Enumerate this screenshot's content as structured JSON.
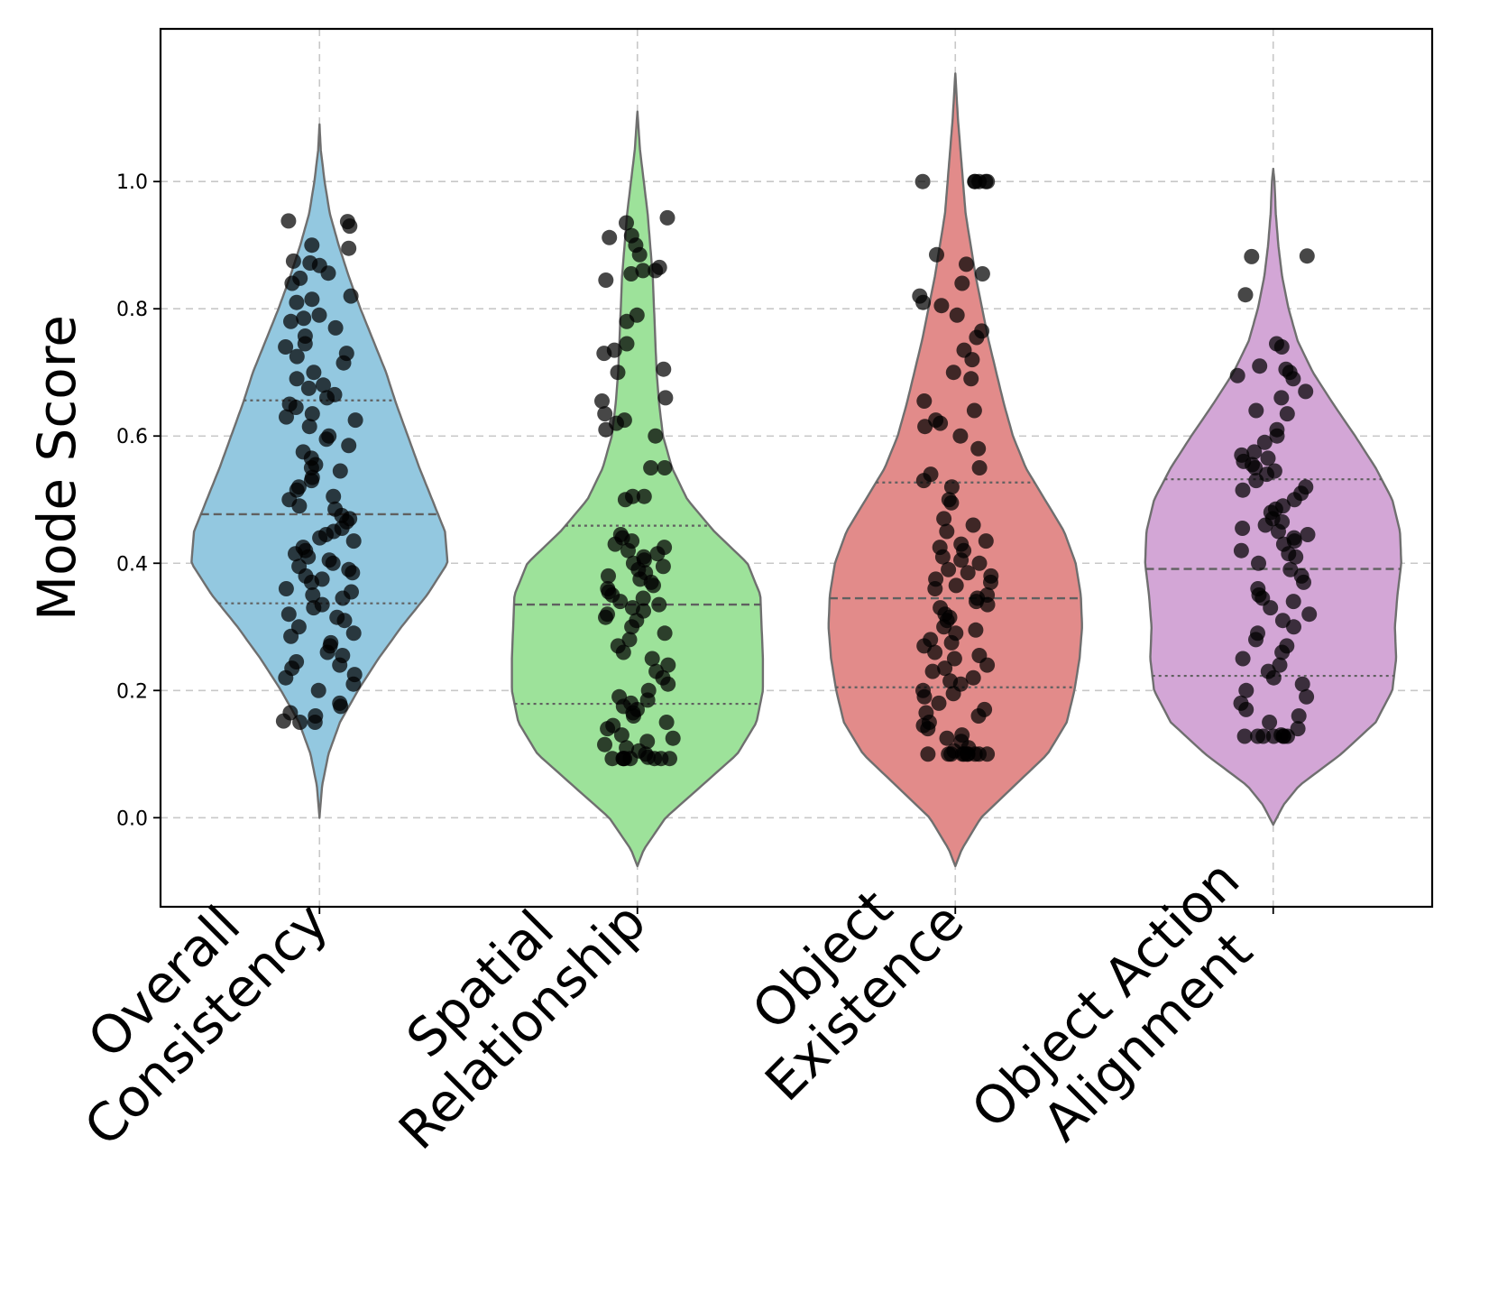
{
  "chart_data": {
    "type": "violin",
    "title": "",
    "xlabel": "",
    "ylabel": "Mode Score",
    "ylim": [
      -0.14,
      1.24
    ],
    "yticks": [
      0.0,
      0.2,
      0.4,
      0.6,
      0.8,
      1.0
    ],
    "ytick_labels": [
      "0.0",
      "0.2",
      "0.4",
      "0.6",
      "0.8",
      "1.0"
    ],
    "grid": true,
    "point_color": "#000000",
    "series": [
      {
        "name": "Overall Consistency",
        "label_lines": [
          "Overall",
          "Consistency"
        ],
        "color": "#93C8E0",
        "quartiles": {
          "q1": 0.337,
          "median": 0.477,
          "q3": 0.656
        },
        "profile": [
          [
            0.0,
            0
          ],
          [
            0.05,
            0.02
          ],
          [
            0.1,
            0.07
          ],
          [
            0.15,
            0.16
          ],
          [
            0.2,
            0.3
          ],
          [
            0.25,
            0.46
          ],
          [
            0.3,
            0.64
          ],
          [
            0.35,
            0.84
          ],
          [
            0.4,
            1.0
          ],
          [
            0.45,
            0.98
          ],
          [
            0.5,
            0.88
          ],
          [
            0.55,
            0.78
          ],
          [
            0.6,
            0.69
          ],
          [
            0.65,
            0.6
          ],
          [
            0.7,
            0.52
          ],
          [
            0.75,
            0.42
          ],
          [
            0.8,
            0.32
          ],
          [
            0.85,
            0.23
          ],
          [
            0.9,
            0.15
          ],
          [
            0.95,
            0.08
          ],
          [
            1.0,
            0.04
          ],
          [
            1.05,
            0.01
          ],
          [
            1.09,
            0
          ]
        ],
        "points": [
          0.937,
          0.93,
          0.938,
          0.9,
          0.895,
          0.875,
          0.872,
          0.868,
          0.856,
          0.848,
          0.84,
          0.82,
          0.815,
          0.81,
          0.79,
          0.785,
          0.78,
          0.77,
          0.757,
          0.745,
          0.74,
          0.73,
          0.725,
          0.715,
          0.7,
          0.69,
          0.68,
          0.675,
          0.665,
          0.66,
          0.65,
          0.645,
          0.635,
          0.63,
          0.625,
          0.615,
          0.6,
          0.595,
          0.585,
          0.575,
          0.565,
          0.555,
          0.55,
          0.545,
          0.535,
          0.53,
          0.52,
          0.515,
          0.505,
          0.5,
          0.49,
          0.485,
          0.475,
          0.47,
          0.465,
          0.455,
          0.45,
          0.445,
          0.44,
          0.435,
          0.425,
          0.42,
          0.415,
          0.41,
          0.405,
          0.4,
          0.395,
          0.39,
          0.385,
          0.38,
          0.375,
          0.37,
          0.36,
          0.355,
          0.35,
          0.345,
          0.335,
          0.33,
          0.32,
          0.315,
          0.31,
          0.3,
          0.29,
          0.285,
          0.275,
          0.27,
          0.26,
          0.255,
          0.245,
          0.24,
          0.235,
          0.225,
          0.22,
          0.21,
          0.2,
          0.18,
          0.175,
          0.165,
          0.16,
          0.152,
          0.15,
          0.15
        ]
      },
      {
        "name": "Spatial Relationship",
        "label_lines": [
          "Spatial",
          "Relationship"
        ],
        "color": "#9DE29A",
        "quartiles": {
          "q1": 0.179,
          "median": 0.335,
          "q3": 0.459
        },
        "profile": [
          [
            -0.076,
            0
          ],
          [
            -0.05,
            0.05
          ],
          [
            0.0,
            0.22
          ],
          [
            0.05,
            0.5
          ],
          [
            0.1,
            0.78
          ],
          [
            0.15,
            0.93
          ],
          [
            0.2,
            0.98
          ],
          [
            0.25,
            0.98
          ],
          [
            0.3,
            0.97
          ],
          [
            0.35,
            0.96
          ],
          [
            0.4,
            0.86
          ],
          [
            0.45,
            0.6
          ],
          [
            0.5,
            0.39
          ],
          [
            0.55,
            0.27
          ],
          [
            0.6,
            0.2
          ],
          [
            0.65,
            0.17
          ],
          [
            0.7,
            0.15
          ],
          [
            0.75,
            0.14
          ],
          [
            0.8,
            0.13
          ],
          [
            0.85,
            0.12
          ],
          [
            0.9,
            0.1
          ],
          [
            0.95,
            0.08
          ],
          [
            1.0,
            0.05
          ],
          [
            1.05,
            0.02
          ],
          [
            1.11,
            0
          ]
        ],
        "points": [
          0.943,
          0.935,
          0.915,
          0.912,
          0.9,
          0.885,
          0.865,
          0.86,
          0.86,
          0.855,
          0.845,
          0.79,
          0.78,
          0.745,
          0.735,
          0.73,
          0.705,
          0.7,
          0.66,
          0.655,
          0.635,
          0.625,
          0.62,
          0.61,
          0.6,
          0.55,
          0.55,
          0.505,
          0.505,
          0.5,
          0.445,
          0.44,
          0.435,
          0.43,
          0.425,
          0.42,
          0.415,
          0.41,
          0.405,
          0.4,
          0.395,
          0.39,
          0.385,
          0.38,
          0.375,
          0.37,
          0.365,
          0.36,
          0.355,
          0.35,
          0.345,
          0.34,
          0.335,
          0.33,
          0.325,
          0.32,
          0.315,
          0.31,
          0.3,
          0.29,
          0.28,
          0.27,
          0.26,
          0.25,
          0.24,
          0.23,
          0.22,
          0.21,
          0.2,
          0.19,
          0.185,
          0.18,
          0.175,
          0.17,
          0.165,
          0.16,
          0.15,
          0.145,
          0.14,
          0.13,
          0.125,
          0.12,
          0.115,
          0.11,
          0.105,
          0.1,
          0.095,
          0.093,
          0.093,
          0.093,
          0.093,
          0.093,
          0.093,
          0.093,
          0.093
        ]
      },
      {
        "name": "Object Existence",
        "label_lines": [
          "Object",
          "Existence"
        ],
        "color": "#E28B8A",
        "quartiles": {
          "q1": 0.205,
          "median": 0.345,
          "q3": 0.527
        },
        "profile": [
          [
            -0.076,
            0
          ],
          [
            -0.05,
            0.05
          ],
          [
            0.0,
            0.2
          ],
          [
            0.05,
            0.46
          ],
          [
            0.1,
            0.72
          ],
          [
            0.15,
            0.87
          ],
          [
            0.2,
            0.93
          ],
          [
            0.25,
            0.97
          ],
          [
            0.3,
            0.99
          ],
          [
            0.35,
            0.98
          ],
          [
            0.4,
            0.94
          ],
          [
            0.45,
            0.85
          ],
          [
            0.5,
            0.7
          ],
          [
            0.55,
            0.55
          ],
          [
            0.6,
            0.45
          ],
          [
            0.65,
            0.38
          ],
          [
            0.7,
            0.32
          ],
          [
            0.75,
            0.26
          ],
          [
            0.8,
            0.21
          ],
          [
            0.85,
            0.16
          ],
          [
            0.9,
            0.12
          ],
          [
            0.95,
            0.08
          ],
          [
            1.0,
            0.06
          ],
          [
            1.05,
            0.04
          ],
          [
            1.1,
            0.02
          ],
          [
            1.17,
            0
          ]
        ],
        "points": [
          1.0,
          1.0,
          1.0,
          1.0,
          1.0,
          1.0,
          0.885,
          0.87,
          0.855,
          0.84,
          0.82,
          0.81,
          0.805,
          0.79,
          0.765,
          0.755,
          0.735,
          0.72,
          0.7,
          0.69,
          0.655,
          0.64,
          0.625,
          0.62,
          0.615,
          0.6,
          0.58,
          0.55,
          0.54,
          0.53,
          0.52,
          0.5,
          0.495,
          0.47,
          0.46,
          0.45,
          0.435,
          0.43,
          0.425,
          0.42,
          0.41,
          0.405,
          0.4,
          0.39,
          0.385,
          0.38,
          0.375,
          0.37,
          0.365,
          0.36,
          0.35,
          0.345,
          0.34,
          0.335,
          0.33,
          0.32,
          0.315,
          0.31,
          0.3,
          0.295,
          0.29,
          0.28,
          0.275,
          0.27,
          0.26,
          0.255,
          0.25,
          0.24,
          0.235,
          0.23,
          0.22,
          0.215,
          0.21,
          0.2,
          0.195,
          0.19,
          0.18,
          0.17,
          0.165,
          0.16,
          0.15,
          0.145,
          0.14,
          0.13,
          0.125,
          0.12,
          0.11,
          0.105,
          0.1,
          0.1,
          0.1,
          0.1,
          0.1,
          0.1,
          0.1,
          0.1,
          0.1,
          0.1
        ]
      },
      {
        "name": "Object Action Alignment",
        "label_lines": [
          "Object Action",
          "Alignment"
        ],
        "color": "#D3A6D6",
        "quartiles": {
          "q1": 0.223,
          "median": 0.391,
          "q3": 0.532
        },
        "profile": [
          [
            -0.011,
            0
          ],
          [
            0.02,
            0.08
          ],
          [
            0.05,
            0.2
          ],
          [
            0.1,
            0.53
          ],
          [
            0.15,
            0.8
          ],
          [
            0.2,
            0.93
          ],
          [
            0.25,
            0.96
          ],
          [
            0.3,
            0.95
          ],
          [
            0.35,
            0.97
          ],
          [
            0.4,
            1.0
          ],
          [
            0.45,
            0.99
          ],
          [
            0.5,
            0.93
          ],
          [
            0.55,
            0.8
          ],
          [
            0.6,
            0.64
          ],
          [
            0.65,
            0.47
          ],
          [
            0.7,
            0.31
          ],
          [
            0.75,
            0.19
          ],
          [
            0.8,
            0.12
          ],
          [
            0.85,
            0.07
          ],
          [
            0.9,
            0.04
          ],
          [
            0.95,
            0.02
          ],
          [
            1.0,
            0.01
          ],
          [
            1.02,
            0
          ]
        ],
        "points": [
          0.883,
          0.882,
          0.822,
          0.745,
          0.74,
          0.71,
          0.705,
          0.7,
          0.695,
          0.69,
          0.67,
          0.66,
          0.64,
          0.635,
          0.61,
          0.6,
          0.59,
          0.575,
          0.57,
          0.565,
          0.56,
          0.555,
          0.55,
          0.545,
          0.54,
          0.53,
          0.52,
          0.515,
          0.51,
          0.5,
          0.49,
          0.485,
          0.48,
          0.47,
          0.465,
          0.46,
          0.455,
          0.45,
          0.445,
          0.44,
          0.435,
          0.43,
          0.42,
          0.415,
          0.41,
          0.4,
          0.39,
          0.38,
          0.37,
          0.36,
          0.35,
          0.345,
          0.34,
          0.33,
          0.32,
          0.31,
          0.3,
          0.29,
          0.28,
          0.27,
          0.26,
          0.25,
          0.24,
          0.23,
          0.22,
          0.21,
          0.2,
          0.19,
          0.18,
          0.17,
          0.16,
          0.15,
          0.14,
          0.13,
          0.128,
          0.128,
          0.128,
          0.128,
          0.128,
          0.128,
          0.128
        ]
      }
    ]
  }
}
